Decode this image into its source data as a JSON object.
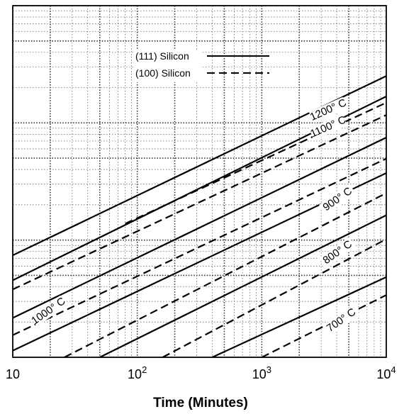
{
  "chart_data": {
    "type": "line",
    "xscale": "log",
    "xlim": [
      10,
      10000
    ],
    "xlabel": "Time (Minutes)",
    "ylabel": "",
    "x_ticks": [
      {
        "value": 10,
        "base": "10",
        "exp": ""
      },
      {
        "value": 100,
        "base": "10",
        "exp": "2"
      },
      {
        "value": 1000,
        "base": "10",
        "exp": "3"
      },
      {
        "value": 10000,
        "base": "10",
        "exp": "4"
      }
    ],
    "y_axis_labeled": false,
    "grid": true,
    "legend": {
      "position": "top-center",
      "entries": [
        {
          "label": "(111) Silicon",
          "style": "solid"
        },
        {
          "label": "(100) Silicon",
          "style": "dashed"
        }
      ]
    },
    "note": "",
    "series": [
      {
        "name": "1200° C",
        "orientation": "(111)",
        "style": "solid",
        "x": [
          10,
          10000
        ],
        "y": [
          0.29,
          0.8
        ]
      },
      {
        "name": "1200° C",
        "orientation": "(100)",
        "style": "dashed",
        "x": [
          80,
          10000
        ],
        "y": [
          0.38,
          0.724
        ]
      },
      {
        "name": "1100° C",
        "orientation": "(111)",
        "style": "solid",
        "x": [
          10,
          10000
        ],
        "y": [
          0.219,
          0.742
        ]
      },
      {
        "name": "1100° C",
        "orientation": "(100)",
        "style": "dashed",
        "x": [
          10,
          10000
        ],
        "y": [
          0.193,
          0.689
        ]
      },
      {
        "name": "1000° C",
        "orientation": "(111)",
        "style": "solid",
        "x": [
          10,
          10000
        ],
        "y": [
          0.112,
          0.625
        ]
      },
      {
        "name": "1000° C",
        "orientation": "(100)",
        "style": "dashed",
        "x": [
          10,
          10000
        ],
        "y": [
          0.063,
          0.565
        ]
      },
      {
        "name": "900° C",
        "orientation": "(111)",
        "style": "solid",
        "x": [
          10,
          10000
        ],
        "y": [
          0.019,
          0.524
        ]
      },
      {
        "name": "900° C",
        "orientation": "(100)",
        "style": "dashed",
        "x": [
          26,
          10000
        ],
        "y": [
          0.0,
          0.467
        ]
      },
      {
        "name": "800° C",
        "orientation": "(111)",
        "style": "solid",
        "x": [
          50,
          10000
        ],
        "y": [
          0.0,
          0.404
        ]
      },
      {
        "name": "800° C",
        "orientation": "(100)",
        "style": "dashed",
        "x": [
          160,
          10000
        ],
        "y": [
          0.0,
          0.336
        ]
      },
      {
        "name": "700° C",
        "orientation": "(111)",
        "style": "solid",
        "x": [
          400,
          10000
        ],
        "y": [
          0.0,
          0.228
        ]
      },
      {
        "name": "700° C",
        "orientation": "(100)",
        "style": "dashed",
        "x": [
          1000,
          10000
        ],
        "y": [
          0.0,
          0.177
        ]
      }
    ],
    "curve_labels": [
      {
        "text": "1200° C",
        "x": 3500,
        "y": 0.695,
        "angle": -24
      },
      {
        "text": "1100° C",
        "x": 3500,
        "y": 0.647,
        "angle": -24
      },
      {
        "text": "1000° C",
        "x": 20,
        "y": 0.124,
        "angle": -35
      },
      {
        "text": "900° C",
        "x": 4200,
        "y": 0.442,
        "angle": -35
      },
      {
        "text": "800° C",
        "x": 4200,
        "y": 0.291,
        "angle": -35
      },
      {
        "text": "700° C",
        "x": 4500,
        "y": 0.098,
        "angle": -35
      }
    ]
  }
}
